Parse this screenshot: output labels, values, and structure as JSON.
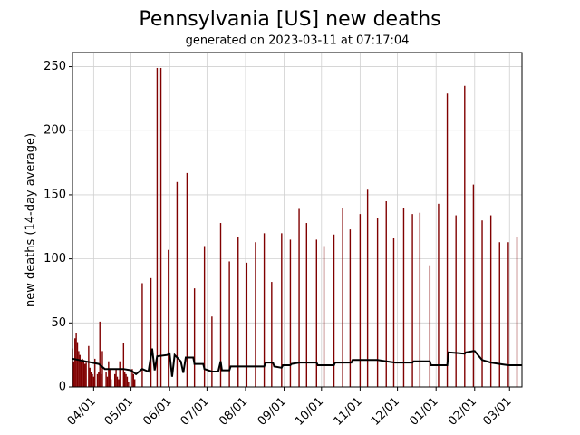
{
  "chart_data": {
    "type": "bar-line",
    "title": "Pennsylvania [US] new deaths",
    "subtitle": "generated on 2023-03-11 at 07:17:04",
    "y_label": "new deaths (14-day average)",
    "xlim": [
      "03/15",
      "03/11"
    ],
    "xticks": [
      "04/01",
      "05/01",
      "06/01",
      "07/01",
      "08/01",
      "09/01",
      "10/01",
      "11/01",
      "12/01",
      "01/01",
      "02/01",
      "03/01"
    ],
    "ylim": [
      0,
      261
    ],
    "yticks": [
      0,
      50,
      100,
      150,
      200,
      250
    ],
    "grid": true,
    "series": [
      {
        "kind": "bar",
        "color": "#800000",
        "x": [
          "03/15",
          "03/16",
          "03/17",
          "03/18",
          "03/19",
          "03/20",
          "03/21",
          "03/22",
          "03/23",
          "03/24",
          "03/25",
          "03/26",
          "03/28",
          "03/29",
          "03/30",
          "03/31",
          "04/01",
          "04/02",
          "04/04",
          "04/05",
          "04/06",
          "04/07",
          "04/08",
          "04/11",
          "04/12",
          "04/13",
          "04/14",
          "04/15",
          "04/18",
          "04/19",
          "04/20",
          "04/21",
          "04/22",
          "04/25",
          "04/26",
          "04/27",
          "04/28",
          "04/29",
          "05/02",
          "05/03",
          "05/04",
          "05/10",
          "05/17",
          "05/22",
          "05/25",
          "05/31",
          "06/07",
          "06/15",
          "06/21",
          "06/29",
          "07/05",
          "07/12",
          "07/19",
          "07/26",
          "08/02",
          "08/09",
          "08/16",
          "08/22",
          "08/30",
          "09/06",
          "09/13",
          "09/19",
          "09/27",
          "10/03",
          "10/11",
          "10/18",
          "10/24",
          "11/01",
          "11/07",
          "11/15",
          "11/22",
          "11/28",
          "12/06",
          "12/13",
          "12/19",
          "12/27",
          "01/03",
          "01/10",
          "01/17",
          "01/24",
          "01/31",
          "02/07",
          "02/14",
          "02/21",
          "02/28",
          "03/07"
        ],
        "values": [
          30,
          20,
          38,
          42,
          35,
          28,
          25,
          20,
          22,
          21,
          18,
          19,
          32,
          15,
          12,
          10,
          8,
          22,
          10,
          12,
          51,
          10,
          28,
          12,
          8,
          20,
          14,
          6,
          10,
          14,
          8,
          6,
          20,
          34,
          12,
          10,
          8,
          4,
          14,
          10,
          6,
          81,
          85,
          249,
          249,
          107,
          160,
          167,
          77,
          110,
          55,
          128,
          98,
          117,
          97,
          113,
          120,
          82,
          120,
          115,
          139,
          128,
          115,
          110,
          119,
          140,
          123,
          135,
          154,
          132,
          145,
          116,
          140,
          135,
          136,
          95,
          143,
          229,
          134,
          235,
          158,
          130,
          134,
          113,
          113,
          117
        ]
      },
      {
        "kind": "line",
        "color": "#000000",
        "x": [
          "03/15",
          "03/25",
          "04/05",
          "04/10",
          "04/20",
          "04/25",
          "05/01",
          "05/05",
          "05/10",
          "05/15",
          "05/18",
          "05/20",
          "05/22",
          "05/30",
          "06/01",
          "06/03",
          "06/05",
          "06/10",
          "06/12",
          "06/14",
          "06/20",
          "06/21",
          "06/28",
          "06/29",
          "07/05",
          "07/10",
          "07/12",
          "07/13",
          "07/19",
          "07/20",
          "08/16",
          "08/17",
          "08/23",
          "08/24",
          "08/30",
          "08/31",
          "09/06",
          "09/07",
          "09/13",
          "09/14",
          "09/27",
          "09/28",
          "10/11",
          "10/12",
          "10/25",
          "10/26",
          "11/15",
          "11/22",
          "11/29",
          "12/13",
          "12/14",
          "12/27",
          "12/28",
          "01/10",
          "01/11",
          "01/24",
          "01/25",
          "01/31",
          "02/01",
          "02/07",
          "02/14",
          "02/21",
          "02/28",
          "03/11"
        ],
        "values": [
          22,
          20,
          18,
          14,
          14,
          14,
          13,
          10,
          14,
          12,
          30,
          13,
          24,
          25,
          26,
          8,
          25,
          20,
          11,
          23,
          23,
          18,
          18,
          14,
          12,
          12,
          20,
          13,
          13,
          16,
          16,
          19,
          19,
          16,
          15,
          17,
          17,
          18,
          19,
          19,
          19,
          17,
          17,
          19,
          19,
          21,
          21,
          20,
          19,
          19,
          20,
          20,
          17,
          17,
          27,
          26,
          27,
          28,
          28,
          21,
          19,
          18,
          17,
          17
        ]
      }
    ]
  }
}
